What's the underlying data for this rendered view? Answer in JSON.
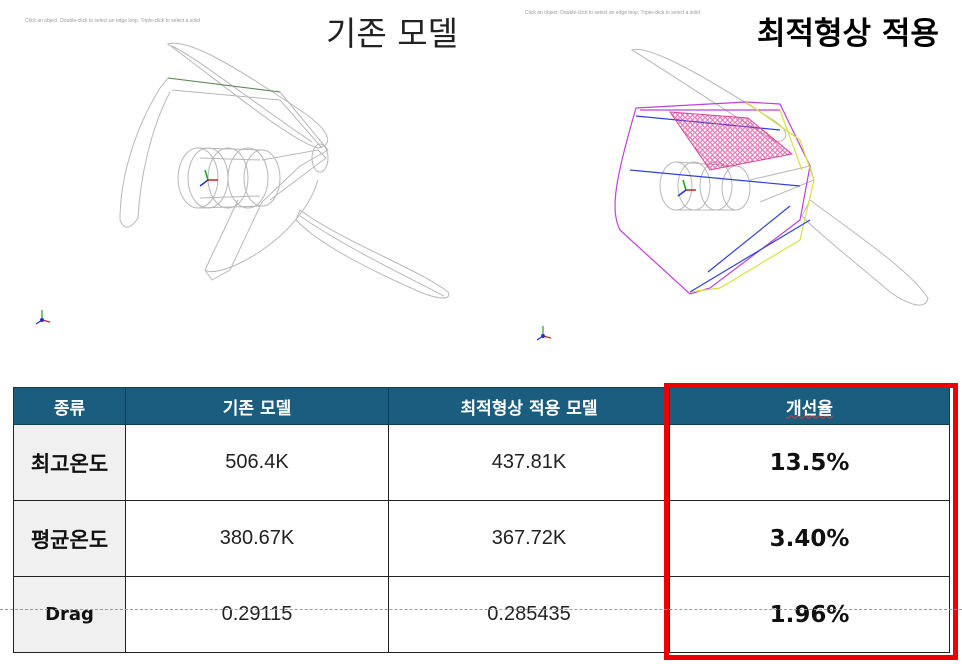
{
  "titles": {
    "left": "기존 모델",
    "right": "최적형상 적용"
  },
  "viewport_hint": "Click an object. Double-click to select an edge loop. Triple-click to select a solid",
  "table": {
    "headers": [
      "종류",
      "기존 모델",
      "최적형상 적용 모델",
      "개선율"
    ],
    "rows": [
      {
        "label": "최고온도",
        "base": "506.4K",
        "optimized": "437.81K",
        "rate": "13.5%"
      },
      {
        "label": "평균온도",
        "base": "380.67K",
        "optimized": "367.72K",
        "rate": "3.40%"
      },
      {
        "label": "Drag",
        "base": "0.29115",
        "optimized": "0.285435",
        "rate": "1.96%"
      }
    ]
  },
  "colors": {
    "header_bg": "#1b5d7e",
    "highlight": "#ee0000",
    "panel_mesh": "#e0409a",
    "frame_purple": "#c040d8",
    "frame_yellow": "#d8e040",
    "frame_blue": "#3040e0"
  },
  "icons": [
    "axis-triad-icon"
  ]
}
